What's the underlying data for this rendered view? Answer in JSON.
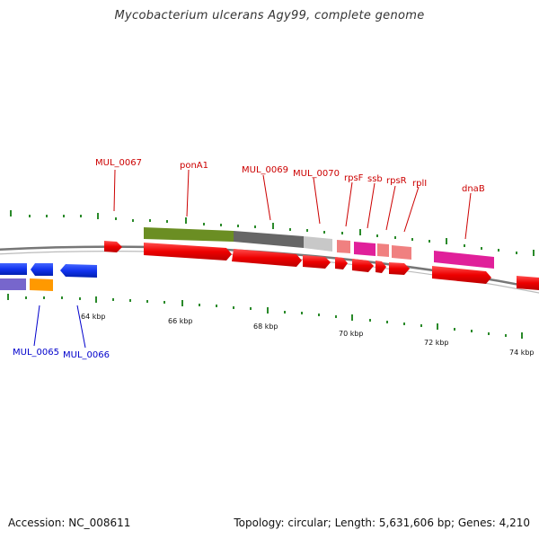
{
  "title": "Mycobacterium ulcerans Agy99, complete genome",
  "footer": {
    "accession": "Accession: NC_008611",
    "summary": "Topology: circular; Length: 5,631,606 bp; Genes: 4,210"
  },
  "ticks": [
    "64 kbp",
    "66 kbp",
    "68 kbp",
    "70 kbp",
    "72 kbp",
    "74 kbp"
  ],
  "gene_labels_top": [
    "MUL_0067",
    "ponA1",
    "MUL_0069",
    "MUL_0070",
    "rpsF",
    "ssb",
    "rpsR",
    "rplI",
    "dnaB"
  ],
  "gene_labels_bottom": [
    "MUL_0065",
    "MUL_0066"
  ],
  "colors": {
    "label_top": "#cc0000",
    "label_bottom": "#0000cc",
    "backbone": "#777777",
    "ticks": "#2a8a2a",
    "cds": "#ee0000",
    "blue": "#1133ee",
    "orange": "#ff9900",
    "purple": "#7766cc",
    "green": "#6b8e23",
    "gray": "#666666",
    "lightgray": "#c8c8c8",
    "pink": "#f08080",
    "magenta": "#e0209a"
  }
}
